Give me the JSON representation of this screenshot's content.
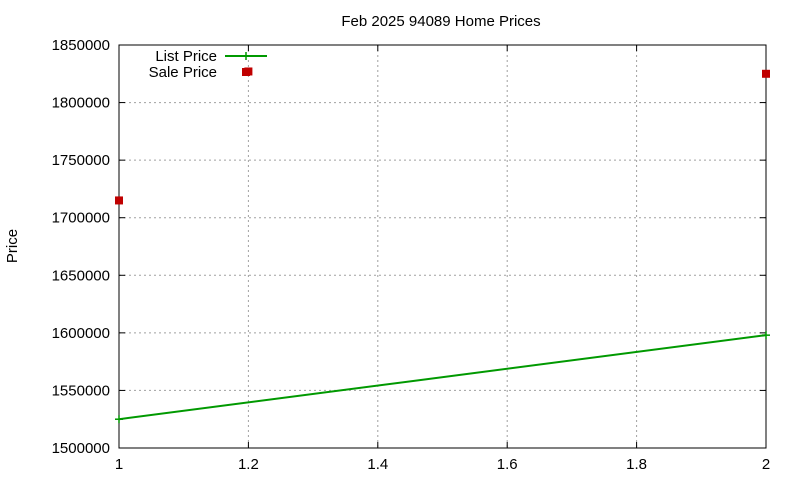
{
  "chart_data": {
    "type": "line",
    "title": "Feb 2025 94089 Home Prices",
    "xlabel": "",
    "ylabel": "Price",
    "xlim": [
      1,
      2
    ],
    "ylim": [
      1500000,
      1850000
    ],
    "xticks": [
      "1",
      "1.2",
      "1.4",
      "1.6",
      "1.8",
      "2"
    ],
    "yticks": [
      "1500000",
      "1550000",
      "1600000",
      "1650000",
      "1700000",
      "1750000",
      "1800000",
      "1850000"
    ],
    "grid": true,
    "legend_position": "top-left",
    "series": [
      {
        "name": "List Price",
        "kind": "line",
        "color": "#009900",
        "points": [
          [
            1,
            1525000
          ],
          [
            2,
            1598000
          ]
        ]
      },
      {
        "name": "Sale Price",
        "kind": "scatter",
        "color": "#c00000",
        "points": [
          [
            1,
            1715000
          ],
          [
            1.2,
            1827000
          ],
          [
            2,
            1825000
          ]
        ]
      }
    ]
  }
}
